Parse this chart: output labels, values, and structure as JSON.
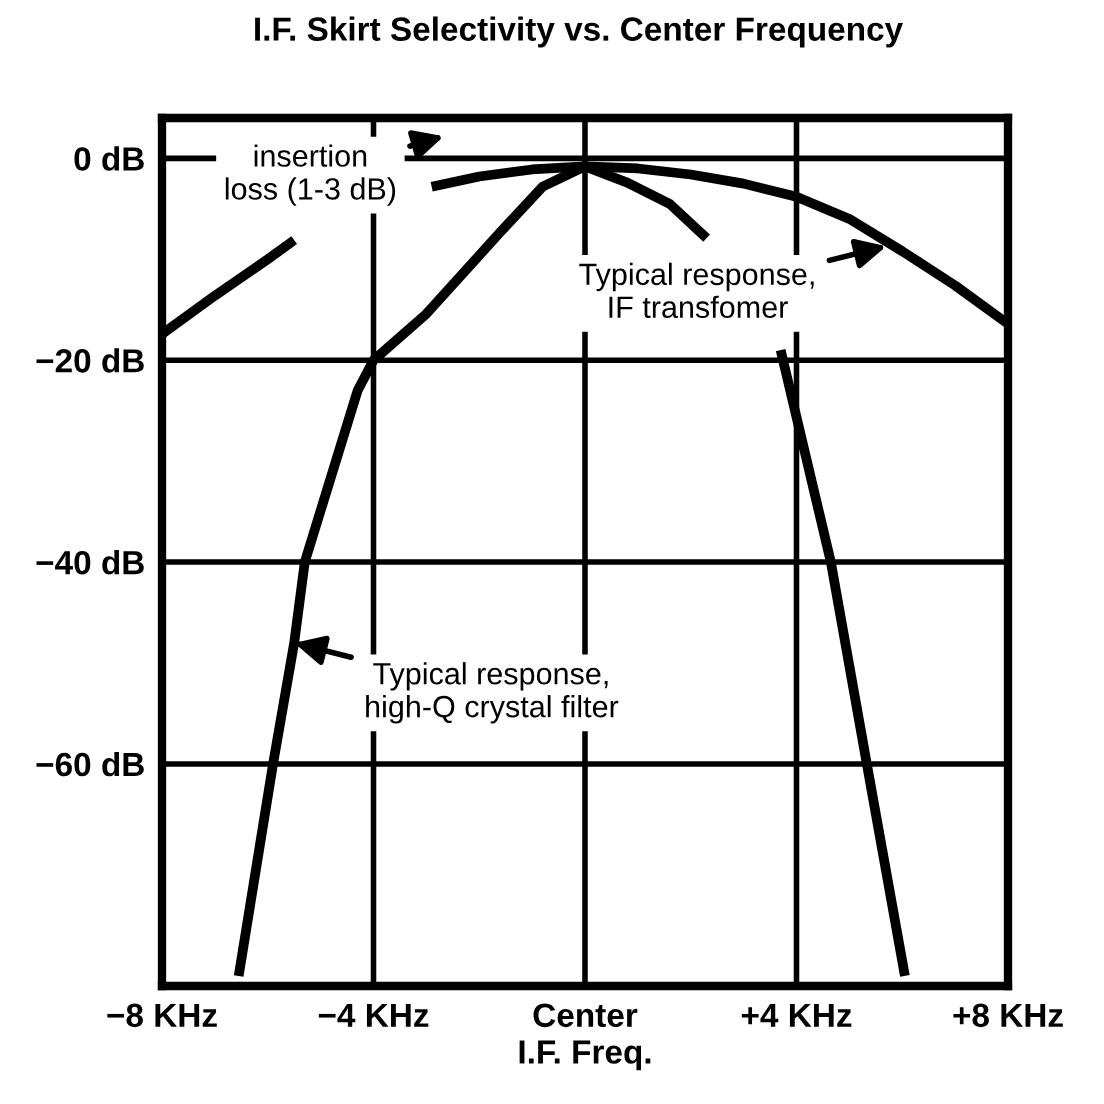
{
  "chart_data": {
    "type": "line",
    "title": "I.F. Skirt Selectivity vs. Center Frequency",
    "xlabel": "I.F. Freq.",
    "xlim": [
      -8,
      8
    ],
    "xticks": [
      {
        "value": -8,
        "label": "−8 KHz"
      },
      {
        "value": -4,
        "label": "−4 KHz"
      },
      {
        "value": 0,
        "label": "Center"
      },
      {
        "value": 4,
        "label": "+4 KHz"
      },
      {
        "value": 8,
        "label": "+8 KHz"
      }
    ],
    "ylim": [
      -82,
      4
    ],
    "yticks": [
      {
        "value": 0,
        "label": "0 dB"
      },
      {
        "value": -20,
        "label": "−20 dB"
      },
      {
        "value": -40,
        "label": "−40 dB"
      },
      {
        "value": -60,
        "label": "−60 dB"
      }
    ],
    "grid": true,
    "marker": "none",
    "line_style": "solid",
    "series": [
      {
        "color": "#000000",
        "x": [
          -8,
          -7,
          -6,
          -5.5,
          -4,
          -2.9,
          -2,
          -1,
          0,
          1,
          2,
          3,
          4,
          5,
          6,
          7,
          8
        ],
        "values": [
          -17.4,
          -13.6,
          -10,
          -8.1,
          null,
          -2.8,
          -1.8,
          -1.1,
          -0.8,
          -1,
          -1.6,
          -2.5,
          -3.8,
          -6,
          -9.2,
          -12.6,
          -16.4
        ]
      },
      {
        "color": "#000000",
        "x": [
          -6.55,
          -5.9,
          -5.5,
          -5.3,
          -4.3,
          -4,
          -3,
          -1.6,
          -0.8,
          0,
          0.8,
          1.6,
          2.3,
          3,
          3.7,
          4.65,
          5.33,
          6.05
        ],
        "values": [
          -81,
          -60,
          -48,
          -40,
          -23,
          -20,
          -15.4,
          -7.3,
          -2.8,
          -0.8,
          -2.4,
          -4.5,
          -7.9,
          null,
          -19,
          -40,
          -60,
          -81
        ]
      }
    ],
    "annotations": [
      "insertion\nloss (1-3 dB)",
      {
        "text": "Typical response,\nIF transfomer",
        "x": 5.7,
        "y": -8.7
      },
      {
        "text": "Typical response,\nhigh-Q crystal filter",
        "x": -5.5,
        "y": -48
      }
    ]
  }
}
